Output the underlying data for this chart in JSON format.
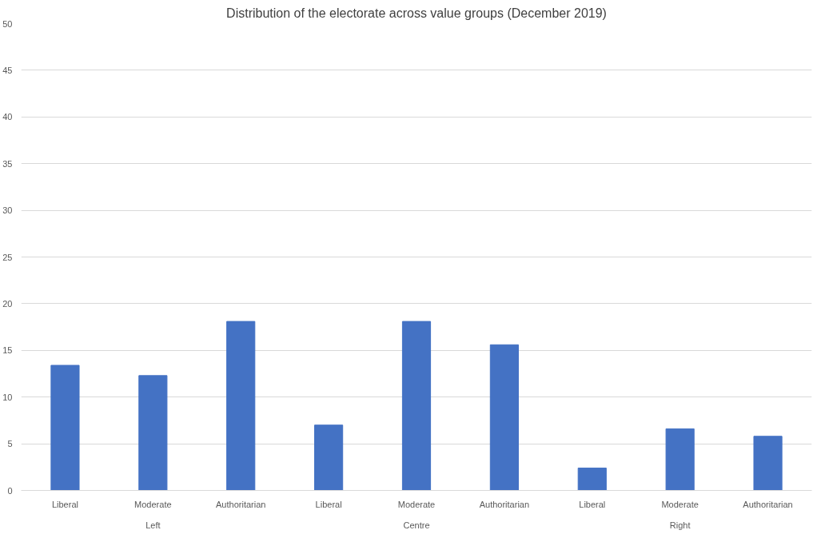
{
  "chart_data": {
    "type": "bar",
    "title": "Distribution of the electorate across value groups (December 2019)",
    "categories": [
      "Liberal",
      "Moderate",
      "Authoritarian",
      "Liberal",
      "Moderate",
      "Authoritarian",
      "Liberal",
      "Moderate",
      "Authoritarian"
    ],
    "values": [
      13.4,
      12.3,
      18.1,
      7.0,
      18.1,
      15.6,
      2.4,
      6.6,
      5.8
    ],
    "color": "#4472c4",
    "annotations": [
      "Left",
      "Centre",
      "Right"
    ],
    "ylim": [
      0,
      50
    ],
    "yticks": [
      0,
      5,
      10,
      15,
      20,
      25,
      30,
      35,
      40,
      45,
      50
    ],
    "grid": "y"
  }
}
